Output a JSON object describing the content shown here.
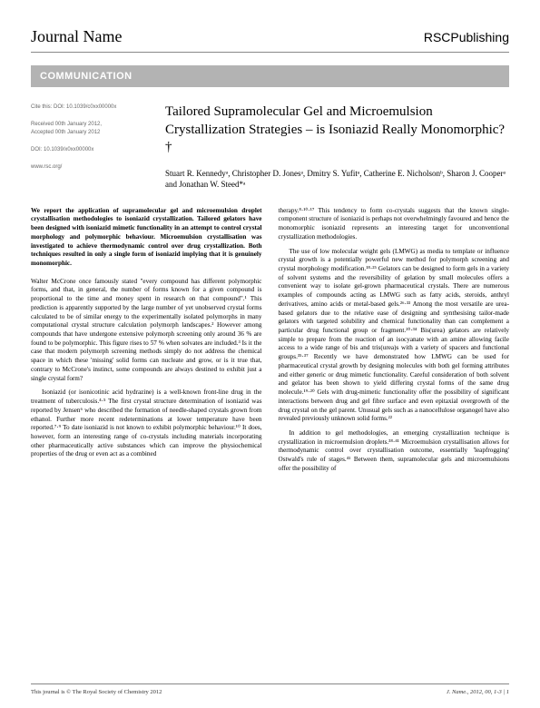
{
  "header": {
    "journal_name": "Journal Name",
    "publisher_prefix": "RSC",
    "publisher_suffix": "Publishing"
  },
  "section_bar": "COMMUNICATION",
  "meta": {
    "cite_this": "Cite this: DOI: 10.1039/c0xx00000x",
    "received": "Received 00th January 2012,",
    "accepted": "Accepted 00th January 2012",
    "doi": "DOI: 10.1039/x0xx00000x",
    "url": "www.rsc.org/"
  },
  "title": "Tailored Supramolecular Gel and Microemulsion Crystallization Strategies – is Isoniazid Really Monomorphic?†",
  "authors": "Stuart R. Kennedyᵃ, Christopher D. Jonesᵃ, Dmitry S. Yufitᵃ, Catherine E. Nicholsonᵇ, Sharon J. Cooperᵃ and Jonathan W. Steed*ᵃ",
  "abstract": "We report the application of supramolecular gel and microemulsion droplet crystallisation methodologies to isoniazid crystallization. Tailored gelators have been designed with isoniazid mimetic functionality in an attempt to control crystal morphology and polymorphic behaviour. Microemulsion crystallisation was investigated to achieve thermodynamic control over drug crystallization. Both techniques resulted in only a single form of isoniazid implying that it is genuinely monomorphic.",
  "body": {
    "p1": "Walter McCrone once famously stated \"every compound has different polymorphic forms, and that, in general, the number of forms known for a given compound is proportional to the time and money spent in research on that compound\".¹ This prediction is apparently supported by the large number of yet unobserved crystal forms calculated to be of similar energy to the experimentally isolated polymorphs in many computational crystal structure calculation polymorph landscapes.² However among compounds that have undergone extensive polymorph screening only around 36 % are found to be polymorphic. This figure rises to 57 % when solvates are included.³ Is it the case that modern polymorph screening methods simply do not address the chemical space in which these 'missing' solid forms can nucleate and grow, or is it true that, contrary to McCrone's instinct, some compounds are always destined to exhibit just a single crystal form?",
    "p2": "Isoniazid (or isonicotinic acid hydrazine) is a well-known front-line drug in the treatment of tuberculosis.⁴·⁵ The first crystal structure determination of isoniazid was reported by Jensen⁶ who described the formation of needle-shaped crystals grown from ethanol. Further more recent redeterminations at lower temperature have been reported.⁷·⁹ To date isoniazid is not known to exhibit polymorphic behaviour.¹⁰ It does, however, form an interesting range of co-crystals including materials incorporating other pharmaceutically active substances which can improve the physiochemical properties of the drug or even act as a combined",
    "p3": "therapy.⁸·¹⁰·¹⁷ This tendency to form co-crystals suggests that the known single-component structure of isoniazid is perhaps not overwhelmingly favoured and hence the monomorphic isoniazid represents an interesting target for unconventional crystallization methodologies.",
    "p4": "The use of low molecular weight gels (LMWG) as media to template or influence crystal growth is a potentially powerful new method for polymorph screening and crystal morphology modification.¹⁸·²⁵ Gelators can be designed to form gels in a variety of solvent systems and the reversibility of gelation by small molecules offers a convenient way to isolate gel-grown pharmaceutical crystals. There are numerous examples of compounds acting as LMWG such as fatty acids, steroids, anthryl derivatives, amino acids or metal-based gels.²⁶·³³ Among the most versatile are urea-based gelators due to the relative ease of designing and synthesising tailor-made gelators with targeted solubility and chemical functionality than can complement a particular drug functional group or fragment.²⁰·³⁴ Bis(urea) gelators are relatively simple to prepare from the reaction of an isocyanate with an amine allowing facile access to a wide range of bis and tris(urea)s with a variety of spacers and functional groups.³⁵·³⁷ Recently we have demonstrated how LMWG can be used for pharmaceutical crystal growth by designing molecules with both gel forming attributes and either generic or drug mimetic functionality. Careful consideration of both solvent and gelator has been shown to yield differing crystal forms of the same drug molecule.¹⁹·²⁰ Gels with drug-mimetic functionality offer the possibility of significant interactions between drug and gel fibre surface and even epitaxial overgrowth of the drug crystal on the gel parent. Unusual gels such as a nanocellulose organogel have also revealed previously unknown solid forms.²²",
    "p5": "In addition to gel methodologies, an emerging crystallization technique is crystallization in microemulsion droplets.³⁸·⁴¹ Microemulsion crystallisation allows for thermodynamic control over crystallisation outcome, essentially 'leapfrogging' Ostwald's rule of stages.⁴¹ Between them, supramolecular gels and microemulsions offer the possibility of"
  },
  "footer": {
    "left": "This journal is © The Royal Society of Chemistry 2012",
    "right": "J. Name., 2012, 00, 1-3 | 1"
  }
}
